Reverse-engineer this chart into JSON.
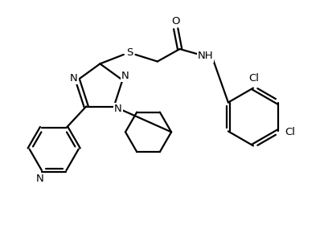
{
  "bg_color": "#ffffff",
  "line_color": "#000000",
  "line_width": 1.6,
  "font_size": 9.5,
  "figsize": [
    4.08,
    2.95
  ],
  "dpi": 100,
  "xlim": [
    0,
    10
  ],
  "ylim": [
    0,
    7.2
  ]
}
